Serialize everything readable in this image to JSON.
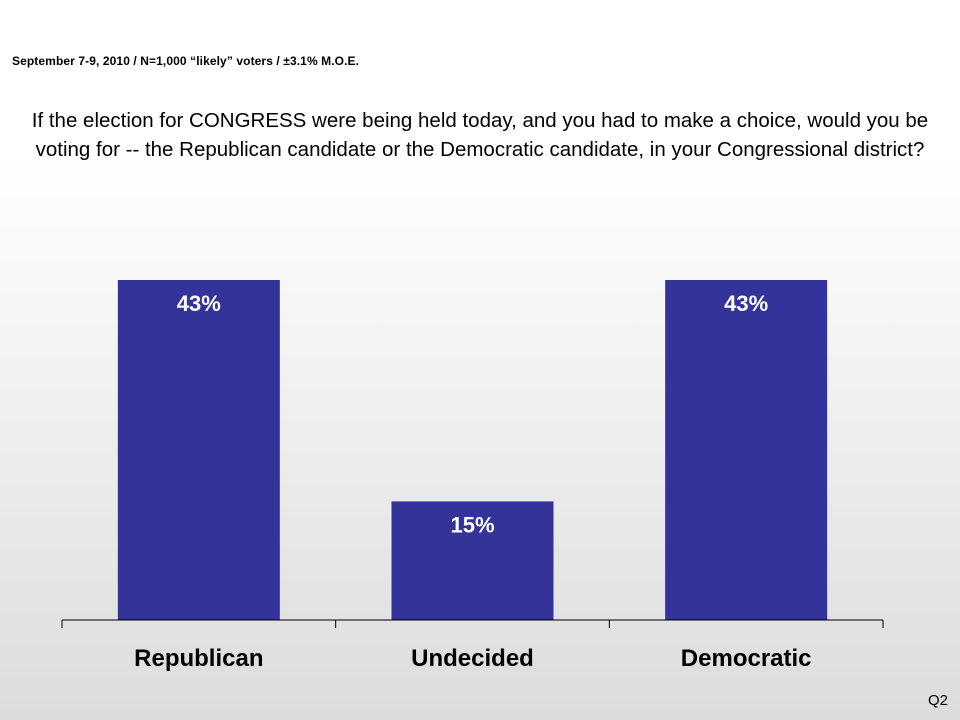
{
  "header": {
    "subtitle": "September 7-9, 2010 / N=1,000 “likely” voters / ±3.1% M.O.E.",
    "title": "If the election for CONGRESS were being held today, and you had to make a choice, would you be voting for -- the Republican candidate or the Democratic candidate, in your Congressional district?"
  },
  "footer": {
    "question_id": "Q2"
  },
  "colors": {
    "bar": "#333399",
    "label": "#ffffff",
    "axis": "#000000"
  },
  "chart_data": {
    "type": "bar",
    "categories": [
      "Republican",
      "Undecided",
      "Democratic"
    ],
    "values": [
      43,
      15,
      43
    ],
    "data_labels": [
      "43%",
      "15%",
      "43%"
    ],
    "title": "",
    "xlabel": "",
    "ylabel": "",
    "ylim": [
      0,
      45
    ],
    "grid": false,
    "legend": "none"
  }
}
